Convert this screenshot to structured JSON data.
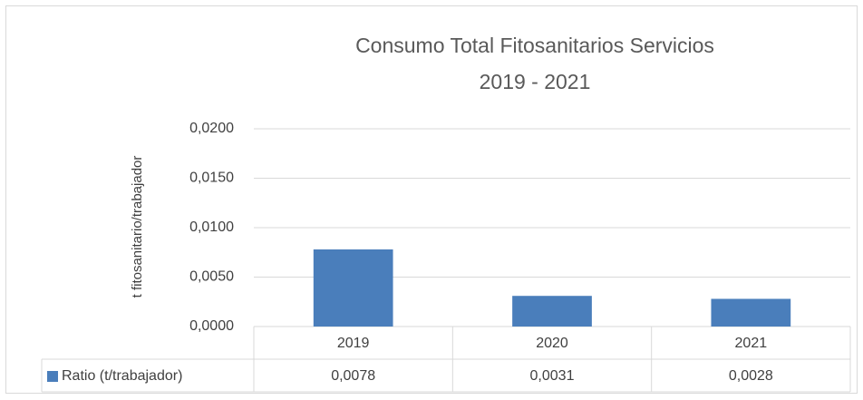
{
  "chart_data": {
    "type": "bar",
    "title": [
      "Consumo Total Fitosanitarios Servicios",
      "2019 - 2021"
    ],
    "y_axis_label": "t fitosanitario/trabajador",
    "categories": [
      "2019",
      "2020",
      "2021"
    ],
    "series": [
      {
        "name": "Ratio (t/trabajador)",
        "color": "#4a7ebb",
        "values": [
          0.0078,
          0.0031,
          0.0028
        ],
        "value_labels": [
          "0,0078",
          "0,0031",
          "0,0028"
        ]
      }
    ],
    "ylim": [
      0,
      0.02
    ],
    "yticks": [
      {
        "value": 0,
        "label": "0,0000"
      },
      {
        "value": 0.005,
        "label": "0,0050"
      },
      {
        "value": 0.01,
        "label": "0,0100"
      },
      {
        "value": 0.015,
        "label": "0,0150"
      },
      {
        "value": 0.02,
        "label": "0,0200"
      }
    ],
    "grid": true,
    "data_table": true
  }
}
